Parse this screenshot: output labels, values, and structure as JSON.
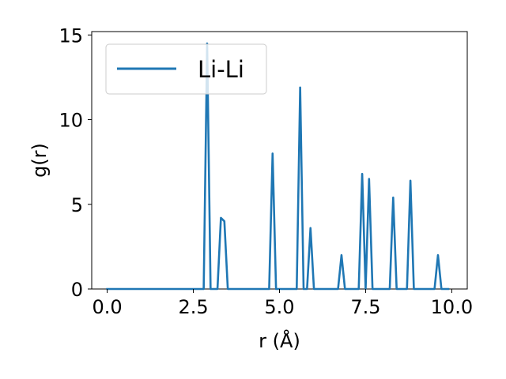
{
  "chart_data": {
    "type": "line",
    "xlabel": "r (Å)",
    "ylabel": "g(r)",
    "xlim": [
      -0.45,
      10.45
    ],
    "ylim": [
      0,
      15.2
    ],
    "xticks": [
      0.0,
      2.5,
      5.0,
      7.5,
      10.0
    ],
    "xtick_labels": [
      "0.0",
      "2.5",
      "5.0",
      "7.5",
      "10.0"
    ],
    "yticks": [
      0,
      5,
      10,
      15
    ],
    "ytick_labels": [
      "0",
      "5",
      "10",
      "15"
    ],
    "grid": false,
    "legend": {
      "placement": "upper-left"
    },
    "series": [
      {
        "name": "Li-Li",
        "color": "#1f77b4",
        "x": [
          0.0,
          2.8,
          2.9,
          3.0,
          3.2,
          3.3,
          3.4,
          3.5,
          4.7,
          4.8,
          4.9,
          5.5,
          5.6,
          5.7,
          5.8,
          5.9,
          6.0,
          6.7,
          6.8,
          6.9,
          7.3,
          7.4,
          7.5,
          7.6,
          7.7,
          8.2,
          8.3,
          8.4,
          8.7,
          8.8,
          8.9,
          9.5,
          9.6,
          9.7,
          9.9
        ],
        "y": [
          0,
          0,
          14.5,
          0,
          0,
          4.2,
          4.0,
          0,
          0,
          8.0,
          0,
          0,
          11.9,
          0,
          0,
          3.6,
          0,
          0,
          2.0,
          0,
          0,
          6.8,
          0,
          6.5,
          0,
          0,
          5.4,
          0,
          0,
          6.4,
          0,
          0,
          2.0,
          0,
          0
        ]
      }
    ]
  }
}
